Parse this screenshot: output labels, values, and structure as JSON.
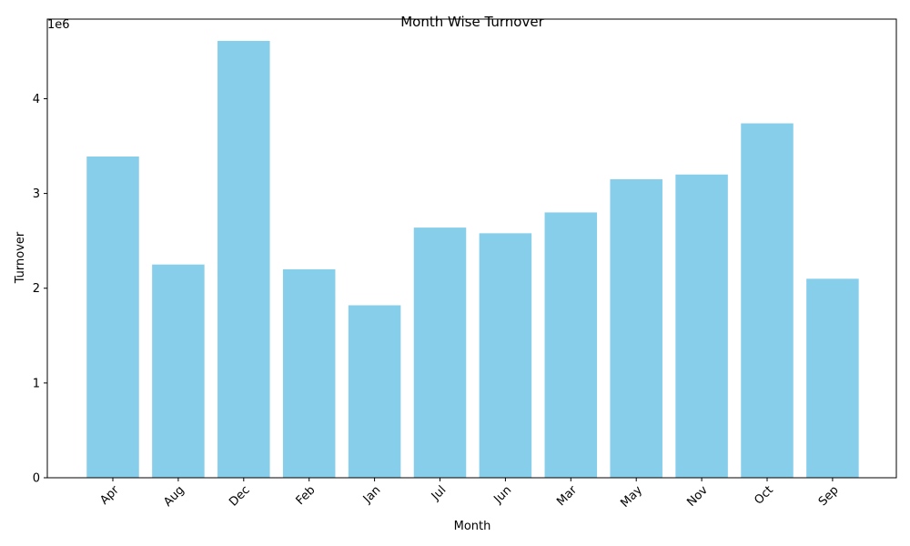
{
  "chart_data": {
    "type": "bar",
    "title": "Month Wise Turnover",
    "xlabel": "Month",
    "ylabel": "Turnover",
    "y_offset_label": "1e6",
    "categories": [
      "Apr",
      "Aug",
      "Dec",
      "Feb",
      "Jan",
      "Jul",
      "Jun",
      "Mar",
      "May",
      "Nov",
      "Oct",
      "Sep"
    ],
    "values": [
      3390000,
      2250000,
      4610000,
      2200000,
      1820000,
      2640000,
      2580000,
      2800000,
      3150000,
      3200000,
      3740000,
      2100000
    ],
    "ylim": [
      0,
      4840000
    ],
    "y_ticks": [
      0,
      1000000,
      2000000,
      3000000,
      4000000
    ],
    "y_tick_labels": [
      "0",
      "1",
      "2",
      "3",
      "4"
    ],
    "bar_color": "#87CEEB",
    "grid": false,
    "legend": "none"
  }
}
